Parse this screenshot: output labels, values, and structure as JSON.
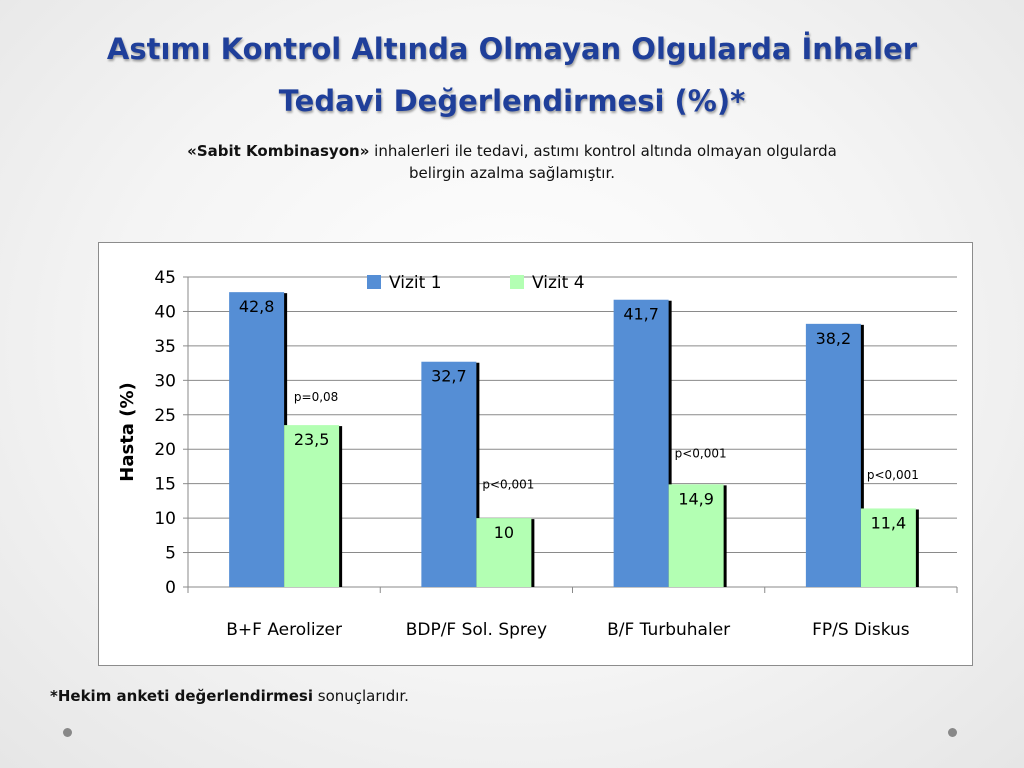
{
  "slide": {
    "title_line1": "Astımı Kontrol Altında Olmayan Olgularda İnhaler",
    "title_line2": "Tedavi Değerlendirmesi (%)*",
    "subtitle_bold": "«Sabit Kombinasyon»",
    "subtitle_rest": " inhalerleri ile tedavi, astımı kontrol altında olmayan olgularda",
    "subtitle_line2": "belirgin azalma sağlamıştır.",
    "footnote_bold": "*Hekim anketi değerlendirmesi",
    "footnote_rest": " sonuçlarıdır."
  },
  "chart_data": {
    "type": "bar",
    "title": "",
    "xlabel": "",
    "ylabel": "Hasta (%)",
    "ylim": [
      0,
      45
    ],
    "yticks": [
      0,
      5,
      10,
      15,
      20,
      25,
      30,
      35,
      40,
      45
    ],
    "grid": true,
    "legend_position": "top-center",
    "categories": [
      "B+F Aerolizer",
      "BDP/F Sol. Sprey",
      "B/F Turbuhaler",
      "FP/S Diskus"
    ],
    "series": [
      {
        "name": "Vizit 1",
        "color": "#558ed5",
        "values": [
          42.8,
          32.7,
          41.7,
          38.2
        ],
        "labels": [
          "42,8",
          "32,7",
          "41,7",
          "38,2"
        ]
      },
      {
        "name": "Vizit 4",
        "color": "#b3ffb3",
        "values": [
          23.5,
          10,
          14.9,
          11.4
        ],
        "labels": [
          "23,5",
          "10",
          "14,9",
          "11,4"
        ]
      }
    ],
    "annotations": [
      {
        "category_index": 0,
        "text": "p=0,08",
        "y": 27
      },
      {
        "category_index": 1,
        "text": "p<0,001",
        "y": 14.3
      },
      {
        "category_index": 2,
        "text": "p<0,001",
        "y": 18.8
      },
      {
        "category_index": 3,
        "text": "p<0,001",
        "y": 15.7
      }
    ]
  }
}
